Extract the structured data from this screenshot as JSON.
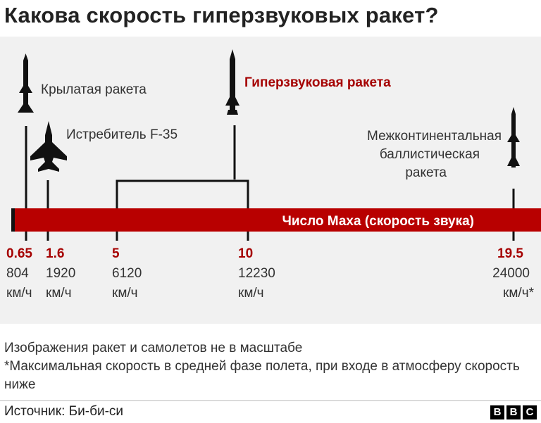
{
  "header": {
    "title": "Какова скорость гиперзвуковых ракет?"
  },
  "chart_data": {
    "type": "timeline",
    "title": "Какова скорость гиперзвуковых ракет?",
    "axis_label": "Число Маха (скорость звука)",
    "points": [
      {
        "mach": "0.65",
        "speed": "804",
        "unit": "км/ч"
      },
      {
        "mach": "1.6",
        "speed": "1920",
        "unit": "км/ч"
      },
      {
        "mach": "5",
        "speed": "6120",
        "unit": "км/ч"
      },
      {
        "mach": "10",
        "speed": "12230",
        "unit": "км/ч"
      },
      {
        "mach": "19.5",
        "speed": "24000",
        "unit": "км/ч*"
      }
    ],
    "items": [
      {
        "label": "Крылатая ракета",
        "icon": "cruise-missile-icon",
        "mach": 0.65
      },
      {
        "label": "Истребитель F-35",
        "icon": "fighter-jet-icon",
        "mach": 1.6
      },
      {
        "label": "Гиперзвуковая ракета",
        "icon": "hypersonic-missile-icon",
        "mach_range": [
          5,
          10
        ]
      },
      {
        "label_lines": [
          "Межконтинентальная",
          "баллистическая",
          "ракета"
        ],
        "icon": "icbm-icon",
        "mach": 19.5
      }
    ],
    "colors": {
      "bar": "#b80000",
      "accent": "#a50000",
      "text": "#333333"
    }
  },
  "notes": {
    "line1": "Изображения ракет и самолетов не в масштабе",
    "line2": "*Максимальная скорость в средней фазе полета, при входе в атмосферу скорость ниже"
  },
  "footer": {
    "source": "Источник: Би-би-си",
    "logo": [
      "B",
      "B",
      "C"
    ]
  }
}
